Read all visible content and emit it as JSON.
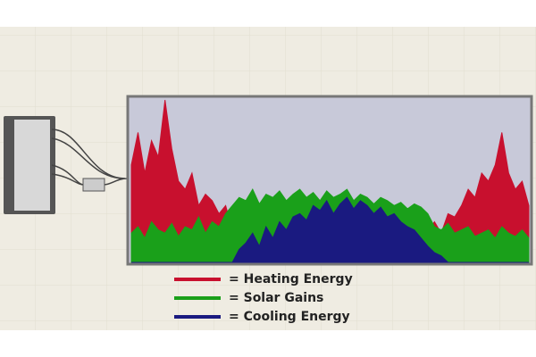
{
  "chart_data": {
    "type": "area",
    "ylim": [
      0,
      100
    ],
    "series": [
      {
        "name": "= Heating Energy",
        "color": "#c8102e",
        "values": [
          60,
          80,
          55,
          75,
          65,
          100,
          70,
          50,
          45,
          55,
          35,
          42,
          38,
          30,
          35,
          20,
          18,
          12,
          10,
          9,
          8,
          10,
          9,
          8,
          7,
          8,
          9,
          7,
          6,
          8,
          7,
          6,
          8,
          7,
          6,
          7,
          8,
          6,
          7,
          8,
          9,
          8,
          9,
          10,
          20,
          25,
          18,
          30,
          28,
          35,
          45,
          40,
          55,
          50,
          60,
          80,
          55,
          45,
          50,
          35
        ]
      },
      {
        "name": "= Solar Gains",
        "color": "#1aa01a",
        "values": [
          18,
          22,
          15,
          25,
          20,
          18,
          24,
          16,
          22,
          20,
          28,
          18,
          25,
          22,
          30,
          35,
          40,
          38,
          45,
          36,
          42,
          40,
          44,
          38,
          42,
          45,
          40,
          43,
          38,
          44,
          40,
          42,
          45,
          38,
          42,
          40,
          36,
          40,
          38,
          35,
          37,
          33,
          36,
          34,
          30,
          22,
          20,
          24,
          18,
          20,
          22,
          16,
          18,
          20,
          15,
          22,
          18,
          16,
          20,
          15
        ]
      },
      {
        "name": "= Cooling Energy",
        "color": "#1a1a80",
        "values": [
          0,
          0,
          0,
          0,
          0,
          0,
          0,
          0,
          0,
          0,
          0,
          0,
          0,
          0,
          0,
          0,
          8,
          12,
          18,
          10,
          22,
          15,
          25,
          20,
          28,
          30,
          26,
          35,
          32,
          38,
          30,
          36,
          40,
          33,
          38,
          35,
          30,
          34,
          28,
          30,
          25,
          22,
          20,
          15,
          10,
          6,
          4,
          0,
          0,
          0,
          0,
          0,
          0,
          0,
          0,
          0,
          0,
          0,
          0,
          0
        ]
      }
    ]
  }
}
